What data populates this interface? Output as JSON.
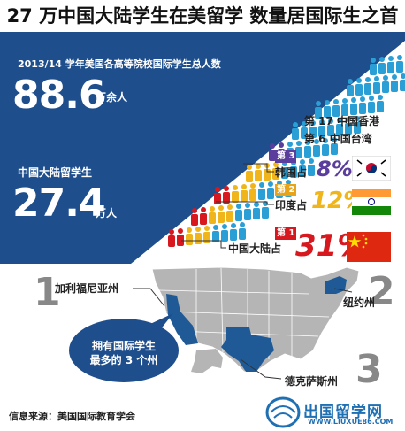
{
  "title": "27 万中国大陆学生在美留学 数量居国际生之首",
  "total": {
    "label": "2013/14 学年美国各高等院校国际学生总人数",
    "value": "88.6",
    "unit": "万余人"
  },
  "china_students": {
    "label": "中国大陆留学生",
    "value": "27.4",
    "unit": "万人"
  },
  "other_ranks": {
    "hong_kong": "第 17 中国香港",
    "taiwan": "第 6 中国台湾"
  },
  "rankings": [
    {
      "rank_label": "第 3",
      "country_label": "韩国占",
      "percent": "8%",
      "flag_icon": "korea-flag-icon",
      "color": "#5a3d9c"
    },
    {
      "rank_label": "第 2",
      "country_label": "印度占",
      "percent": "12%",
      "flag_icon": "india-flag-icon",
      "color": "#e8a418"
    },
    {
      "rank_label": "第 1",
      "country_label": "中国大陆占",
      "percent": "31%",
      "flag_icon": "china-flag-icon",
      "color": "#d7191f"
    }
  ],
  "states": [
    {
      "number": "1",
      "name": "加利福尼亚州"
    },
    {
      "number": "2",
      "name": "纽约州"
    },
    {
      "number": "3",
      "name": "德克萨斯州"
    }
  ],
  "bubble": {
    "line1": "拥有国际学生",
    "line2": "最多的 3 个州"
  },
  "source": "信息来源：美国国际教育学会",
  "logo": {
    "text": "出国留学网",
    "url": "WWW.LIUXUE86.COM"
  },
  "colors": {
    "navy": "#1f4e8c",
    "cyan": "#2a9fd6",
    "purple": "#5a3d9c",
    "yellow": "#f0b51a",
    "red": "#d7191f",
    "map_gray": "#b5b5b5",
    "map_highlight": "#1f5a96"
  }
}
